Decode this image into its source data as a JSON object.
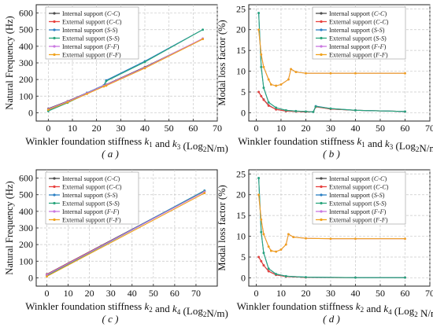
{
  "captions": [
    "( a )",
    "( b )",
    "( c )",
    "( d )"
  ],
  "legend_labels": [
    "Internal support (C-C)",
    "External support (C-C)",
    "Internal support (S-S)",
    "External support (S-S)",
    "Internal support (F-F)",
    "External support (F-F)"
  ],
  "series_colors": [
    "#4d4d4d",
    "#e8403e",
    "#2b7fc4",
    "#2aa57c",
    "#c977e0",
    "#f0a21c"
  ],
  "chart_data": [
    {
      "type": "line",
      "xlabel": "Winkler foundation stiffness k1 and k3 (Log2N/m)",
      "ylabel": "Natural Frequency (Hz)",
      "xlim": [
        -5,
        70
      ],
      "ylim": [
        -50,
        650
      ],
      "xticks": [
        0,
        10,
        20,
        30,
        40,
        50,
        60,
        70
      ],
      "yticks": [
        0,
        100,
        200,
        300,
        400,
        500,
        600
      ],
      "grid": true,
      "legend": "top-left",
      "series": [
        {
          "name": "Internal support (C-C)",
          "x": [
            0,
            8,
            16,
            23,
            24,
            40,
            64
          ],
          "y": [
            25,
            70,
            120,
            165,
            170,
            275,
            445
          ]
        },
        {
          "name": "External support (C-C)",
          "x": [
            0,
            8,
            16,
            23,
            24,
            40,
            64
          ],
          "y": [
            20,
            65,
            115,
            160,
            165,
            270,
            445
          ]
        },
        {
          "name": "Internal support (S-S)",
          "x": [
            0,
            8,
            16,
            23,
            24,
            40,
            64
          ],
          "y": [
            15,
            65,
            120,
            165,
            195,
            310,
            500
          ]
        },
        {
          "name": "External support (S-S)",
          "x": [
            0,
            8,
            16,
            23,
            24,
            40,
            64
          ],
          "y": [
            10,
            60,
            115,
            160,
            190,
            305,
            500
          ]
        },
        {
          "name": "Internal support (F-F)",
          "x": [
            0,
            8,
            16,
            23,
            24,
            40,
            64
          ],
          "y": [
            22,
            68,
            118,
            163,
            168,
            272,
            447
          ]
        },
        {
          "name": "External support (F-F)",
          "x": [
            0,
            8,
            16,
            23,
            24,
            40,
            64
          ],
          "y": [
            18,
            63,
            113,
            158,
            163,
            268,
            443
          ]
        }
      ]
    },
    {
      "type": "line",
      "xlabel": "Winkler foundation stiffness k1 and k3 (Log2N/m)",
      "ylabel": "Modal loss factor (%)",
      "xlim": [
        -3,
        70
      ],
      "ylim": [
        -2,
        26
      ],
      "xticks": [
        0,
        10,
        20,
        30,
        40,
        50,
        60,
        70
      ],
      "yticks": [
        0,
        5,
        10,
        15,
        20,
        25
      ],
      "grid": true,
      "legend": "top-right",
      "series": [
        {
          "name": "Internal support (C-C)",
          "x": [
            1,
            2,
            3,
            5,
            8,
            12,
            16,
            20,
            23,
            24,
            30,
            40,
            60
          ],
          "y": [
            5,
            4,
            3.2,
            1.8,
            0.8,
            0.4,
            0.3,
            0.2,
            0.2,
            1.5,
            0.9,
            0.6,
            0.3
          ]
        },
        {
          "name": "External support (C-C)",
          "x": [
            1,
            2,
            3,
            5,
            8,
            12,
            16,
            20,
            23,
            24,
            30,
            40,
            60
          ],
          "y": [
            5,
            4,
            3.1,
            1.7,
            0.8,
            0.4,
            0.3,
            0.2,
            0.2,
            1.4,
            0.9,
            0.6,
            0.3
          ]
        },
        {
          "name": "Internal support (S-S)",
          "x": [
            1,
            2,
            3,
            5,
            8,
            12,
            16,
            20,
            23,
            24,
            30,
            40,
            60
          ],
          "y": [
            24,
            11,
            6,
            2.5,
            1.2,
            0.6,
            0.4,
            0.3,
            0.2,
            1.6,
            1.0,
            0.6,
            0.3
          ]
        },
        {
          "name": "External support (S-S)",
          "x": [
            1,
            2,
            3,
            5,
            8,
            12,
            16,
            20,
            23,
            24,
            30,
            40,
            60
          ],
          "y": [
            24,
            11,
            6,
            2.5,
            1.2,
            0.6,
            0.4,
            0.3,
            0.2,
            1.5,
            1.0,
            0.6,
            0.3
          ]
        },
        {
          "name": "Internal support (F-F)",
          "x": [
            1,
            2,
            3,
            5,
            6,
            8,
            10,
            13,
            14,
            16,
            20,
            30,
            40,
            60
          ],
          "y": [
            20,
            14,
            11,
            8,
            6.8,
            6.5,
            6.8,
            8,
            10.5,
            9.8,
            9.5,
            9.5,
            9.5,
            9.5
          ]
        },
        {
          "name": "External support (F-F)",
          "x": [
            1,
            2,
            3,
            5,
            6,
            8,
            10,
            13,
            14,
            16,
            20,
            30,
            40,
            60
          ],
          "y": [
            20,
            14,
            11,
            8,
            6.8,
            6.5,
            6.8,
            8,
            10.5,
            9.8,
            9.5,
            9.5,
            9.5,
            9.5
          ]
        }
      ]
    },
    {
      "type": "line",
      "xlabel": "Winkler foundation stiffness k2 and k4 (Log2N/m)",
      "ylabel": "Natural Frequency (Hz)",
      "xlim": [
        -5,
        80
      ],
      "ylim": [
        -50,
        650
      ],
      "xticks": [
        0,
        10,
        20,
        30,
        40,
        50,
        60,
        70
      ],
      "yticks": [
        0,
        100,
        200,
        300,
        400,
        500,
        600
      ],
      "grid": true,
      "legend": "top-left",
      "series": [
        {
          "name": "Internal support (C-C)",
          "x": [
            0,
            74
          ],
          "y": [
            22,
            522
          ]
        },
        {
          "name": "External support (C-C)",
          "x": [
            0,
            74
          ],
          "y": [
            20,
            520
          ]
        },
        {
          "name": "Internal support (S-S)",
          "x": [
            0,
            74
          ],
          "y": [
            15,
            525
          ]
        },
        {
          "name": "External support (S-S)",
          "x": [
            0,
            74
          ],
          "y": [
            12,
            522
          ]
        },
        {
          "name": "Internal support (F-F)",
          "x": [
            0,
            74
          ],
          "y": [
            18,
            518
          ]
        },
        {
          "name": "External support (F-F)",
          "x": [
            0,
            74
          ],
          "y": [
            8,
            510
          ]
        }
      ]
    },
    {
      "type": "line",
      "xlabel": "Winkler foundation stiffness k2 and k4 (Log2 N/m)",
      "ylabel": "Modal loss factor (%)",
      "xlim": [
        -3,
        70
      ],
      "ylim": [
        -2,
        26
      ],
      "xticks": [
        0,
        10,
        20,
        30,
        40,
        50,
        60,
        70
      ],
      "yticks": [
        0,
        5,
        10,
        15,
        20,
        25
      ],
      "grid": true,
      "legend": "top-right",
      "series": [
        {
          "name": "Internal support (C-C)",
          "x": [
            1,
            2,
            3,
            5,
            8,
            12,
            20,
            40,
            60
          ],
          "y": [
            5,
            4,
            3,
            1.6,
            0.7,
            0.3,
            0.1,
            0.05,
            0.05
          ]
        },
        {
          "name": "External support (C-C)",
          "x": [
            1,
            2,
            3,
            5,
            8,
            12,
            20,
            40,
            60
          ],
          "y": [
            5,
            4,
            3,
            1.6,
            0.7,
            0.3,
            0.1,
            0.05,
            0.05
          ]
        },
        {
          "name": "Internal support (S-S)",
          "x": [
            1,
            2,
            3,
            5,
            8,
            12,
            20,
            40,
            60
          ],
          "y": [
            24,
            11,
            6,
            2.2,
            0.9,
            0.4,
            0.15,
            0.05,
            0.05
          ]
        },
        {
          "name": "External support (S-S)",
          "x": [
            1,
            2,
            3,
            5,
            8,
            12,
            20,
            40,
            60
          ],
          "y": [
            24,
            11,
            6,
            2.2,
            0.9,
            0.4,
            0.15,
            0.05,
            0.05
          ]
        },
        {
          "name": "Internal support (F-F)",
          "x": [
            1,
            2,
            3,
            5,
            6,
            8,
            10,
            12,
            13,
            15,
            20,
            30,
            40,
            60
          ],
          "y": [
            20,
            14,
            10.5,
            7.5,
            6.5,
            6.3,
            6.8,
            8,
            10.5,
            9.8,
            9.5,
            9.4,
            9.4,
            9.4
          ]
        },
        {
          "name": "External support (F-F)",
          "x": [
            1,
            2,
            3,
            5,
            6,
            8,
            10,
            12,
            13,
            15,
            20,
            30,
            40,
            60
          ],
          "y": [
            20,
            14,
            10.5,
            7.5,
            6.5,
            6.3,
            6.8,
            8,
            10.5,
            9.8,
            9.5,
            9.4,
            9.4,
            9.4
          ]
        }
      ]
    }
  ]
}
